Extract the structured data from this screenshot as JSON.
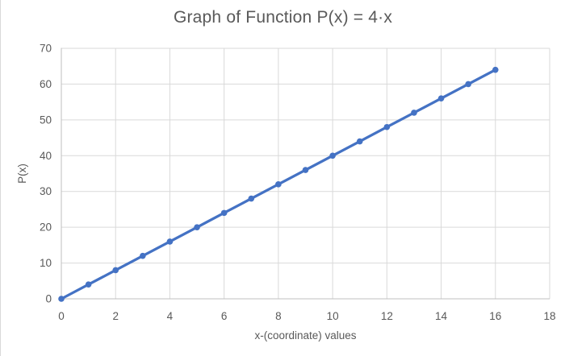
{
  "window": {
    "background": "#ffffff",
    "border_color": "#d9d9d9"
  },
  "chart_data": {
    "type": "line",
    "title": "Graph of Function P(x) = 4·x",
    "xlabel": "x-(coordinate) values",
    "ylabel": "P(x)",
    "x": [
      0,
      1,
      2,
      3,
      4,
      5,
      6,
      7,
      8,
      9,
      10,
      11,
      12,
      13,
      14,
      15,
      16
    ],
    "series": [
      {
        "values": [
          0,
          4,
          8,
          12,
          16,
          20,
          24,
          28,
          32,
          36,
          40,
          44,
          48,
          52,
          56,
          60,
          64
        ],
        "color": "#4472C4",
        "marker": "circle"
      }
    ],
    "xlim": [
      0,
      18
    ],
    "ylim": [
      0,
      70
    ],
    "xticks": [
      0,
      2,
      4,
      6,
      8,
      10,
      12,
      14,
      16,
      18
    ],
    "yticks": [
      0,
      10,
      20,
      30,
      40,
      50,
      60,
      70
    ],
    "grid": true,
    "gridline_color": "#d9d9d9",
    "axis_line_color": "#bfbfbf",
    "text_color": "#595959",
    "tick_font_size": 13.5,
    "legend": "none"
  }
}
